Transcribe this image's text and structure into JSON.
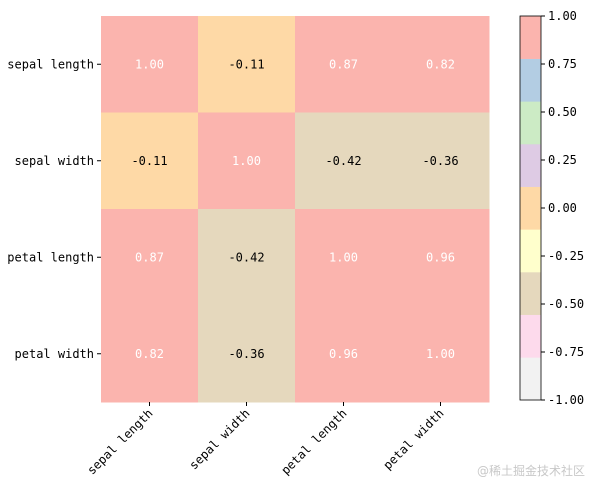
{
  "chart_data": {
    "type": "heatmap",
    "x_categories": [
      "sepal length",
      "sepal width",
      "petal length",
      "petal width"
    ],
    "y_categories": [
      "sepal length",
      "sepal width",
      "petal length",
      "petal width"
    ],
    "values": [
      [
        1.0,
        -0.11,
        0.87,
        0.82
      ],
      [
        -0.11,
        1.0,
        -0.42,
        -0.36
      ],
      [
        0.87,
        -0.42,
        1.0,
        0.96
      ],
      [
        0.82,
        -0.36,
        0.96,
        1.0
      ]
    ],
    "annotations": [
      [
        "1.00",
        "-0.11",
        "0.87",
        "0.82"
      ],
      [
        "-0.11",
        "1.00",
        "-0.42",
        "-0.36"
      ],
      [
        "0.87",
        "-0.42",
        "1.00",
        "0.96"
      ],
      [
        "0.82",
        "-0.36",
        "0.96",
        "1.00"
      ]
    ],
    "vmin": -1.0,
    "vmax": 1.0,
    "colormap": "Pastel1",
    "colorbar_ticks": [
      "1.00",
      "0.75",
      "0.50",
      "0.25",
      "0.00",
      "-0.25",
      "-0.50",
      "-0.75",
      "-1.00"
    ],
    "colorbar_colors": [
      "#f2f2f2",
      "#fddaec",
      "#e5d8bd",
      "#ffffcc",
      "#fed9a6",
      "#decbe4",
      "#ccebc5",
      "#b3cde3",
      "#fbb4ae"
    ],
    "annotation_color_light": "#ffffff",
    "annotation_color_dark": "#000000"
  },
  "watermark": "@稀土掘金技术社区"
}
